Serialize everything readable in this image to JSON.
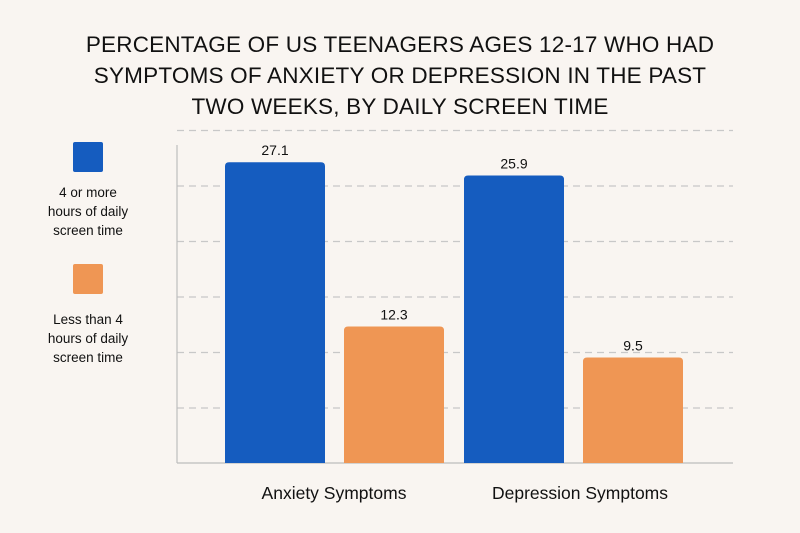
{
  "chart_data": {
    "type": "bar",
    "title_lines": [
      "PERCENTAGE OF US TEENAGERS AGES 12-17 WHO HAD",
      "SYMPTOMS OF ANXIETY OR DEPRESSION IN THE PAST",
      "TWO WEEKS, BY DAILY SCREEN TIME"
    ],
    "categories": [
      "Anxiety Symptoms",
      "Depression Symptoms"
    ],
    "series": [
      {
        "name": "4 or more hours of daily screen time",
        "name_lines": [
          "4 or more",
          "hours of daily",
          "screen time"
        ],
        "color": "#155cbf",
        "values": [
          27.1,
          25.9
        ]
      },
      {
        "name": "Less than 4 hours of daily screen time",
        "name_lines": [
          "Less than 4",
          "hours of daily",
          "screen time"
        ],
        "color": "#ef9654",
        "values": [
          12.3,
          9.5
        ]
      }
    ],
    "value_labels": [
      [
        "27.1",
        "25.9"
      ],
      [
        "12.3",
        "9.5"
      ]
    ],
    "ylim": [
      0,
      30
    ],
    "grid": true,
    "legend_position": "left"
  }
}
